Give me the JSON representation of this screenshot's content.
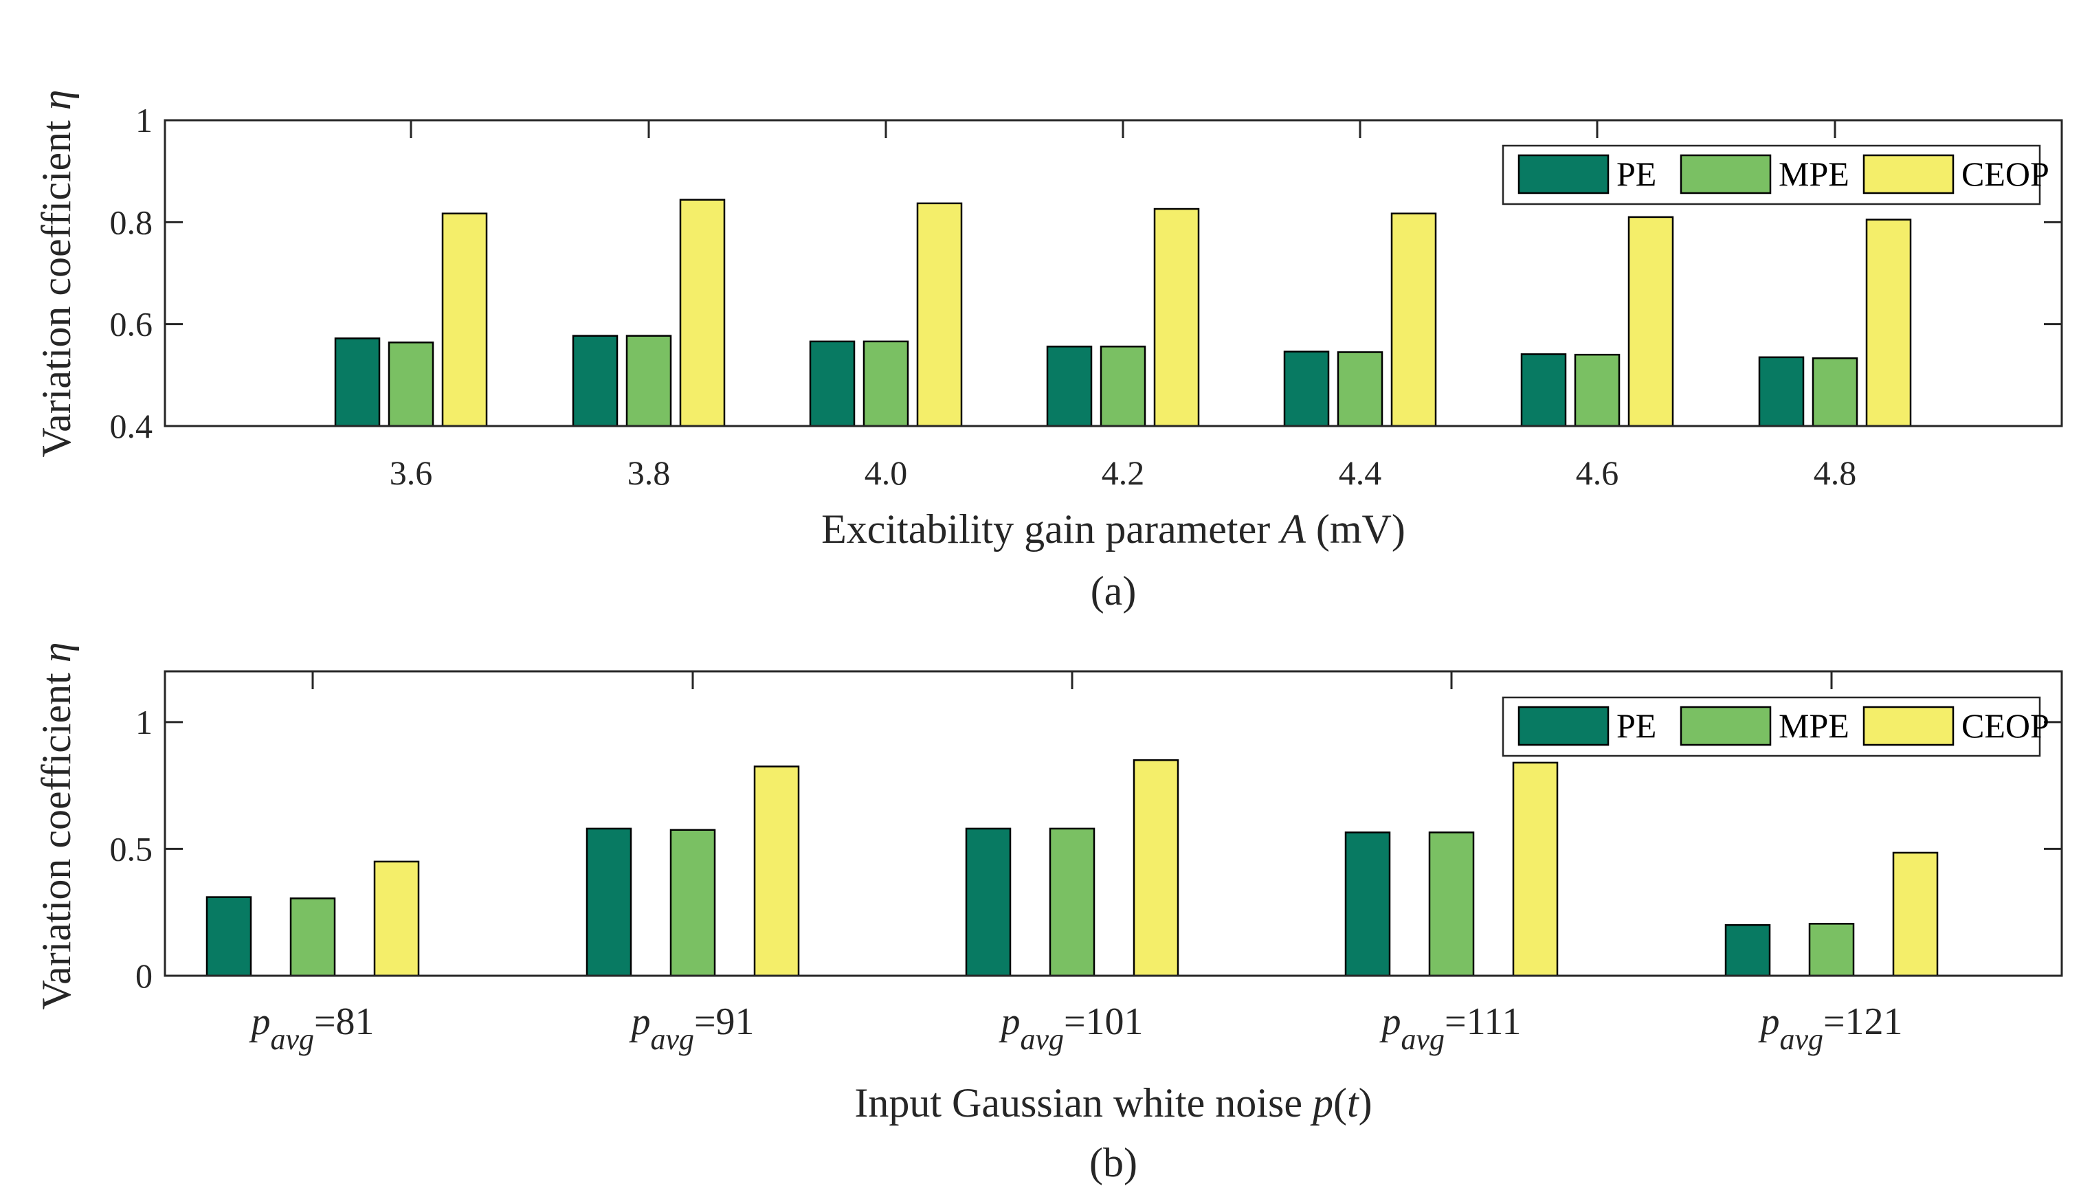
{
  "colors": {
    "PE": "#087a62",
    "MPE": "#7ac063",
    "CEOP": "#f4ee6a"
  },
  "chart_data": [
    {
      "type": "bar",
      "panel": "(a)",
      "title": "",
      "xlabel_pre": "Excitability gain parameter ",
      "xlabel_var": "A",
      "xlabel_post": " (mV)",
      "ylabel_pre": "Variation coefficient ",
      "ylabel_var": "η",
      "caption": "(a)",
      "categories": [
        "3.6",
        "3.8",
        "4.0",
        "4.2",
        "4.4",
        "4.6",
        "4.8"
      ],
      "series": [
        {
          "name": "PE",
          "values": [
            0.572,
            0.577,
            0.566,
            0.556,
            0.546,
            0.541,
            0.535
          ]
        },
        {
          "name": "MPE",
          "values": [
            0.564,
            0.577,
            0.566,
            0.556,
            0.545,
            0.54,
            0.533
          ]
        },
        {
          "name": "CEOP",
          "values": [
            0.817,
            0.844,
            0.837,
            0.826,
            0.817,
            0.81,
            0.805
          ]
        }
      ],
      "ylim": [
        0.4,
        1.0
      ],
      "yticks": [
        0.4,
        0.6,
        0.8,
        1.0
      ],
      "ytick_labels": [
        "0.4",
        "0.6",
        "0.8",
        "1"
      ],
      "legend": "top-right"
    },
    {
      "type": "bar",
      "panel": "(b)",
      "title": "",
      "xlabel_pre": "Input Gaussian white noise ",
      "xlabel_var": "p",
      "xlabel_paren_open": "(",
      "xlabel_arg": "t",
      "xlabel_paren_close": ")",
      "ylabel_pre": "Variation coefficient ",
      "ylabel_var": "η",
      "caption": "(b)",
      "category_var": "p",
      "category_sub": "avg",
      "categories": [
        "=81",
        "=91",
        "=101",
        "=111",
        "=121"
      ],
      "series": [
        {
          "name": "PE",
          "values": [
            0.31,
            0.58,
            0.58,
            0.565,
            0.2
          ]
        },
        {
          "name": "MPE",
          "values": [
            0.305,
            0.575,
            0.58,
            0.565,
            0.205
          ]
        },
        {
          "name": "CEOP",
          "values": [
            0.45,
            0.825,
            0.85,
            0.84,
            0.485
          ]
        }
      ],
      "ylim": [
        0,
        1.2
      ],
      "yticks": [
        0,
        0.5,
        1.0
      ],
      "ytick_labels": [
        "0",
        "0.5",
        "1"
      ],
      "legend": "top-right"
    }
  ]
}
